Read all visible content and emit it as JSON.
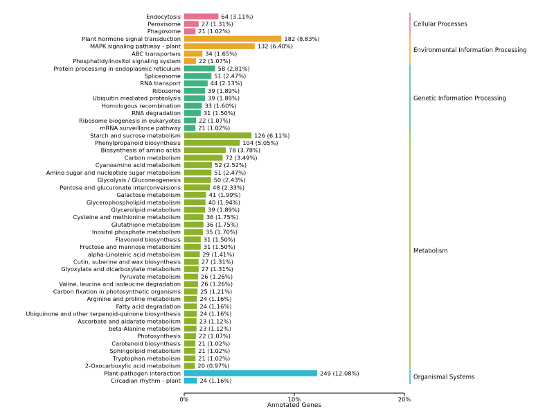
{
  "chart_data": {
    "type": "bar",
    "orientation": "horizontal",
    "xlabel": "Annotated Genes",
    "xlim": [
      0,
      20
    ],
    "xticks": [
      0,
      10,
      20
    ],
    "xtick_labels": [
      "0%",
      "10%",
      "20%"
    ],
    "grid": false,
    "groups": [
      {
        "name": "Cellular Processes",
        "color": "#E8718D",
        "categories": [
          "Endocytosis",
          "Peroxisome",
          "Phagosome"
        ],
        "values": [
          3.11,
          1.31,
          1.02
        ],
        "labels": [
          "64 (3.11%)",
          "27 (1.31%)",
          "21 (1.02%)"
        ]
      },
      {
        "name": "Environmental Information Processing",
        "color": "#EBA72B",
        "categories": [
          "Plant hormone signal transduction",
          "MAPK signaling pathway - plant",
          "ABC transporters",
          "Phosphatidylinositol signaling system"
        ],
        "values": [
          8.83,
          6.4,
          1.65,
          1.07
        ],
        "labels": [
          "182 (8.83%)",
          "132 (6.40%)",
          "34 (1.65%)",
          "22 (1.07%)"
        ]
      },
      {
        "name": "Genetic Information Processing",
        "color": "#3DB382",
        "categories": [
          "Protein processing in endoplasmic reticulum",
          "Spliceosome",
          "RNA transport",
          "Ribosome",
          "Ubiquitin mediated proteolysis",
          "Homologous recombination",
          "RNA degradation",
          "Ribosome biogenesis in eukaryotes",
          "mRNA surveillance pathway"
        ],
        "values": [
          2.81,
          2.47,
          2.13,
          1.89,
          1.89,
          1.6,
          1.5,
          1.07,
          1.02
        ],
        "labels": [
          "58 (2.81%)",
          "51 (2.47%)",
          "44 (2.13%)",
          "39 (1.89%)",
          "39 (1.89%)",
          "33 (1.60%)",
          "31 (1.50%)",
          "22 (1.07%)",
          "21 (1.02%)"
        ]
      },
      {
        "name": "Metabolism",
        "color": "#8CB22B",
        "categories": [
          "Starch and sucrose metabolism",
          "Phenylpropanoid biosynthesis",
          "Biosynthesis of amino acids",
          "Carbon metabolism",
          "Cyanoamino acid metabolism",
          "Amino sugar and nucleotide sugar metabolism",
          "Glycolysis / Gluconeogenesis",
          "Pentose and glucuronate interconversions",
          "Galactose metabolism",
          "Glycerophospholipid metabolism",
          "Glycerolipid metabolism",
          "Cysteine and methionine metabolism",
          "Glutathione metabolism",
          "Inositol phosphate metabolism",
          "Flavonoid biosynthesis",
          "Fructose and mannose metabolism",
          "alpha-Linolenic acid metabolism",
          "Cutin, suberine and wax biosynthesis",
          "Glyoxylate and dicarboxylate metabolism",
          "Pyruvate metabolism",
          "Valine, leucine and isoleucine degradation",
          "Carbon fixation in photosynthetic organisms",
          "Arginine and proline metabolism",
          "Fatty acid degradation",
          "Ubiquinone and other terpenoid-quinone biosynthesis",
          "Ascorbate and aldarate metabolism",
          "beta-Alanine metabolism",
          "Photosynthesis",
          "Carotenoid biosynthesis",
          "Sphingolipid metabolism",
          "Tryptophan metabolism",
          "2-Oxocarboxylic acid metabolism"
        ],
        "values": [
          6.11,
          5.05,
          3.78,
          3.49,
          2.52,
          2.47,
          2.43,
          2.33,
          1.99,
          1.94,
          1.89,
          1.75,
          1.75,
          1.7,
          1.5,
          1.5,
          1.41,
          1.31,
          1.31,
          1.26,
          1.26,
          1.21,
          1.16,
          1.16,
          1.16,
          1.12,
          1.12,
          1.07,
          1.02,
          1.02,
          1.02,
          0.97
        ],
        "labels": [
          "126 (6.11%)",
          "104 (5.05%)",
          "78 (3.78%)",
          "72 (3.49%)",
          "52 (2.52%)",
          "51 (2.47%)",
          "50 (2.43%)",
          "48 (2.33%)",
          "41 (1.99%)",
          "40 (1.94%)",
          "39 (1.89%)",
          "36 (1.75%)",
          "36 (1.75%)",
          "35 (1.70%)",
          "31 (1.50%)",
          "31 (1.50%)",
          "29 (1.41%)",
          "27 (1.31%)",
          "27 (1.31%)",
          "26 (1.26%)",
          "26 (1.26%)",
          "25 (1.21%)",
          "24 (1.16%)",
          "24 (1.16%)",
          "24 (1.16%)",
          "23 (1.12%)",
          "23 (1.12%)",
          "22 (1.07%)",
          "21 (1.02%)",
          "21 (1.02%)",
          "21 (1.02%)",
          "20 (0.97%)"
        ]
      },
      {
        "name": "Organismal Systems",
        "color": "#2FB8CF",
        "categories": [
          "Plant-pathogen interaction",
          "Circadian rhythm - plant"
        ],
        "values": [
          12.08,
          1.16
        ],
        "labels": [
          "249 (12.08%)",
          "24 (1.16%)"
        ]
      }
    ]
  }
}
